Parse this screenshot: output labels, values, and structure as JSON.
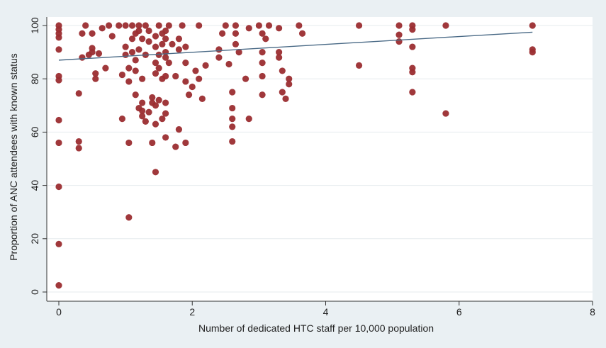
{
  "chart_data": {
    "type": "scatter",
    "title": "",
    "xlabel": "Number of dedicated HTC staff per 10,000 population",
    "ylabel": "Proportion of ANC attendees with known status",
    "xlim": [
      0,
      8
    ],
    "ylim": [
      0,
      100
    ],
    "x_ticks": [
      "0",
      "2",
      "4",
      "6",
      "8"
    ],
    "y_ticks": [
      "0",
      "20",
      "40",
      "60",
      "80",
      "100"
    ],
    "grid": "horizontal",
    "legend": "none",
    "colors": {
      "point": "#9b2d30",
      "fit_line": "#4a6a86",
      "plot_bg": "#ffffff",
      "outer_bg": "#eaf0f3",
      "grid": "#e6ebee"
    },
    "fit_line": {
      "x": [
        0,
        7.1
      ],
      "y": [
        87,
        97.5
      ]
    },
    "series": [
      {
        "values": [
          [
            0,
            2.5
          ],
          [
            0,
            18
          ],
          [
            0,
            39.5
          ],
          [
            0,
            56
          ],
          [
            0,
            64.5
          ],
          [
            0,
            79.5
          ],
          [
            0,
            81
          ],
          [
            0,
            91
          ],
          [
            0,
            95.5
          ],
          [
            0,
            97
          ],
          [
            0,
            98.5
          ],
          [
            0,
            100
          ],
          [
            0.3,
            54
          ],
          [
            0.3,
            56.5
          ],
          [
            0.3,
            74.5
          ],
          [
            0.35,
            88
          ],
          [
            0.35,
            97
          ],
          [
            0.4,
            100
          ],
          [
            0.45,
            89
          ],
          [
            0.5,
            90
          ],
          [
            0.5,
            91.5
          ],
          [
            0.5,
            97
          ],
          [
            0.55,
            80
          ],
          [
            0.55,
            82
          ],
          [
            0.6,
            89.5
          ],
          [
            0.65,
            99
          ],
          [
            0.7,
            84
          ],
          [
            0.75,
            100
          ],
          [
            0.8,
            96
          ],
          [
            0.9,
            100
          ],
          [
            0.95,
            65
          ],
          [
            0.95,
            81.5
          ],
          [
            1.0,
            89
          ],
          [
            1.0,
            92
          ],
          [
            1.0,
            100
          ],
          [
            1.05,
            28
          ],
          [
            1.05,
            56
          ],
          [
            1.05,
            84
          ],
          [
            1.05,
            79
          ],
          [
            1.1,
            90
          ],
          [
            1.1,
            95
          ],
          [
            1.1,
            100
          ],
          [
            1.15,
            74
          ],
          [
            1.15,
            83
          ],
          [
            1.15,
            87
          ],
          [
            1.15,
            97
          ],
          [
            1.2,
            69
          ],
          [
            1.2,
            91
          ],
          [
            1.2,
            98
          ],
          [
            1.2,
            100
          ],
          [
            1.25,
            66
          ],
          [
            1.25,
            68
          ],
          [
            1.25,
            71
          ],
          [
            1.25,
            80
          ],
          [
            1.25,
            95
          ],
          [
            1.3,
            64
          ],
          [
            1.3,
            89
          ],
          [
            1.3,
            100
          ],
          [
            1.35,
            67.5
          ],
          [
            1.35,
            94
          ],
          [
            1.35,
            98
          ],
          [
            1.4,
            56
          ],
          [
            1.4,
            71
          ],
          [
            1.4,
            73
          ],
          [
            1.45,
            45
          ],
          [
            1.45,
            63
          ],
          [
            1.45,
            70
          ],
          [
            1.45,
            82
          ],
          [
            1.45,
            86
          ],
          [
            1.45,
            92
          ],
          [
            1.45,
            96
          ],
          [
            1.5,
            72
          ],
          [
            1.5,
            84
          ],
          [
            1.5,
            89
          ],
          [
            1.5,
            100
          ],
          [
            1.55,
            65
          ],
          [
            1.55,
            80
          ],
          [
            1.55,
            93
          ],
          [
            1.55,
            97
          ],
          [
            1.6,
            58
          ],
          [
            1.6,
            67
          ],
          [
            1.6,
            71
          ],
          [
            1.6,
            81
          ],
          [
            1.6,
            88
          ],
          [
            1.6,
            90
          ],
          [
            1.6,
            95
          ],
          [
            1.6,
            98
          ],
          [
            1.65,
            86
          ],
          [
            1.65,
            100
          ],
          [
            1.7,
            93
          ],
          [
            1.75,
            54.5
          ],
          [
            1.75,
            81
          ],
          [
            1.8,
            61
          ],
          [
            1.8,
            91
          ],
          [
            1.8,
            95
          ],
          [
            1.85,
            100
          ],
          [
            1.9,
            56
          ],
          [
            1.9,
            79
          ],
          [
            1.9,
            86
          ],
          [
            1.9,
            92
          ],
          [
            1.95,
            74
          ],
          [
            2.0,
            77
          ],
          [
            2.05,
            83
          ],
          [
            2.1,
            80
          ],
          [
            2.1,
            100
          ],
          [
            2.15,
            72.5
          ],
          [
            2.2,
            85
          ],
          [
            2.4,
            88
          ],
          [
            2.4,
            91
          ],
          [
            2.45,
            97
          ],
          [
            2.5,
            100
          ],
          [
            2.55,
            85.5
          ],
          [
            2.6,
            56.5
          ],
          [
            2.6,
            62
          ],
          [
            2.6,
            65
          ],
          [
            2.6,
            69
          ],
          [
            2.6,
            75
          ],
          [
            2.65,
            93
          ],
          [
            2.65,
            97
          ],
          [
            2.65,
            100
          ],
          [
            2.7,
            90
          ],
          [
            2.8,
            80
          ],
          [
            2.85,
            65
          ],
          [
            2.85,
            99
          ],
          [
            3.0,
            100
          ],
          [
            3.05,
            74
          ],
          [
            3.05,
            81
          ],
          [
            3.05,
            86
          ],
          [
            3.05,
            90
          ],
          [
            3.05,
            97
          ],
          [
            3.1,
            95
          ],
          [
            3.15,
            100
          ],
          [
            3.3,
            88
          ],
          [
            3.3,
            90
          ],
          [
            3.3,
            99
          ],
          [
            3.35,
            75
          ],
          [
            3.35,
            83
          ],
          [
            3.4,
            72.5
          ],
          [
            3.45,
            78
          ],
          [
            3.45,
            80
          ],
          [
            3.6,
            100
          ],
          [
            3.65,
            97
          ],
          [
            4.5,
            85
          ],
          [
            4.5,
            100
          ],
          [
            5.1,
            94
          ],
          [
            5.1,
            96.5
          ],
          [
            5.1,
            100
          ],
          [
            5.3,
            75
          ],
          [
            5.3,
            82.5
          ],
          [
            5.3,
            84
          ],
          [
            5.3,
            92
          ],
          [
            5.3,
            98.5
          ],
          [
            5.3,
            100
          ],
          [
            5.8,
            67
          ],
          [
            5.8,
            100
          ],
          [
            7.1,
            90
          ],
          [
            7.1,
            91
          ],
          [
            7.1,
            100
          ]
        ]
      }
    ]
  }
}
